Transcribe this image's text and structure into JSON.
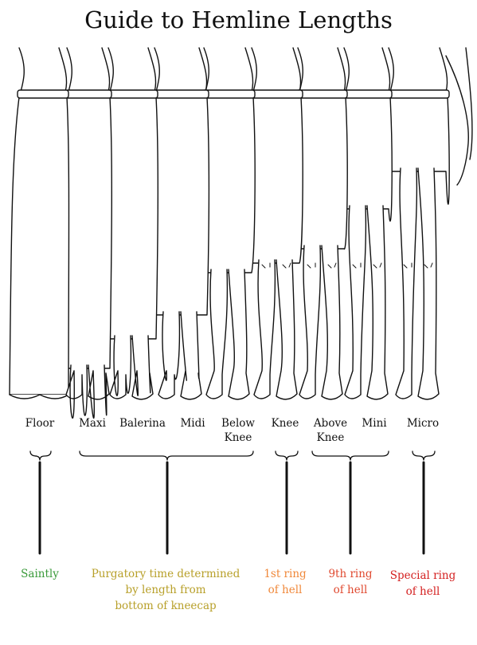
{
  "title": "Guide to Hemline Lengths",
  "lengths": [
    {
      "line1": "Floor",
      "line2": ""
    },
    {
      "line1": "Maxi",
      "line2": ""
    },
    {
      "line1": "Balerina",
      "line2": ""
    },
    {
      "line1": "Midi",
      "line2": ""
    },
    {
      "line1": "Below",
      "line2": "Knee"
    },
    {
      "line1": "Knee",
      "line2": ""
    },
    {
      "line1": "Above",
      "line2": "Knee"
    },
    {
      "line1": "Mini",
      "line2": ""
    },
    {
      "line1": "Micro",
      "line2": ""
    }
  ],
  "verdicts": [
    {
      "lines": [
        "Saintly"
      ],
      "color": "#3a9a3a"
    },
    {
      "lines": [
        "Purgatory time determined",
        "by length from",
        "bottom of kneecap"
      ],
      "color": "#b8a02a"
    },
    {
      "lines": [
        "1st ring",
        "of hell"
      ],
      "color": "#f0883a"
    },
    {
      "lines": [
        "9th ring",
        "of hell"
      ],
      "color": "#e04a30"
    },
    {
      "lines": [
        "Special ring",
        "of hell"
      ],
      "color": "#d42020"
    }
  ]
}
